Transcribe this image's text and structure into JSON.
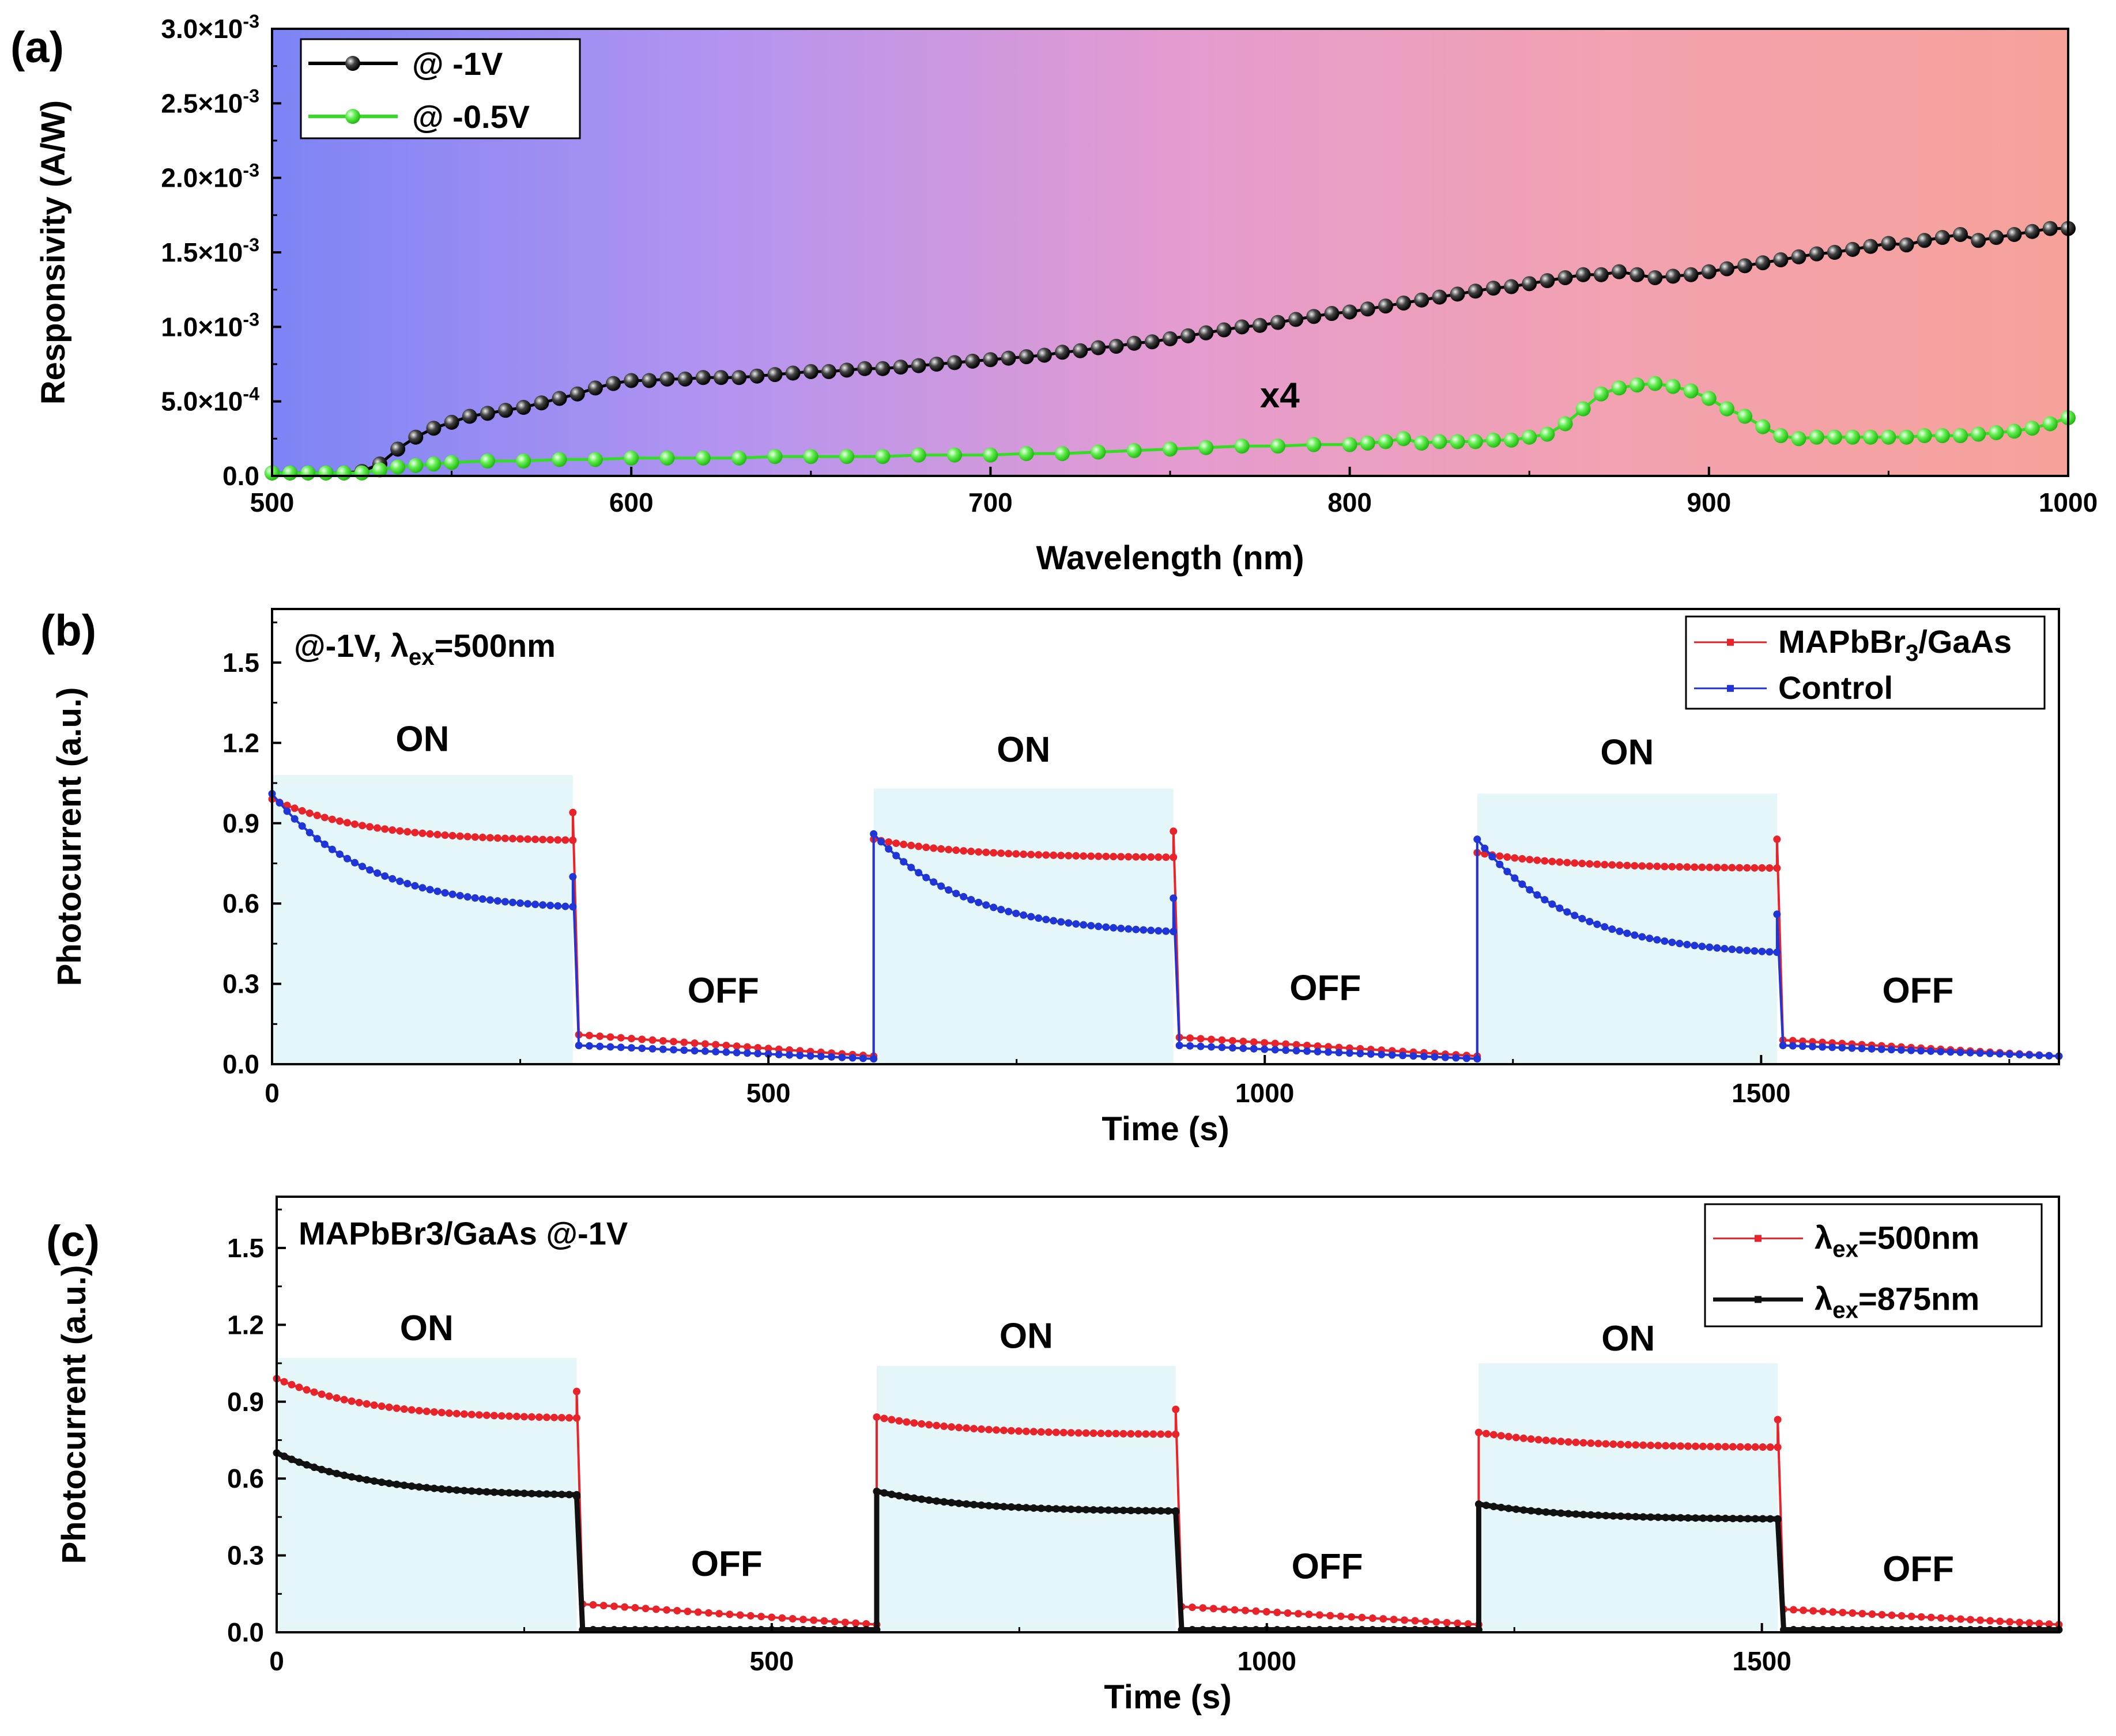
{
  "chart_data": [
    {
      "panel": "(a)",
      "type": "line",
      "xlabel": "Wavelength (nm)",
      "ylabel": "Responsivity (A/W)",
      "xlim": [
        500,
        1000
      ],
      "ylim": [
        0,
        0.003
      ],
      "xticks": [
        500,
        600,
        700,
        800,
        900,
        1000
      ],
      "xtick_labels": [
        "500",
        "600",
        "700",
        "800",
        "900",
        "1000"
      ],
      "yticks": [
        0,
        0.0005,
        0.001,
        0.0015,
        0.002,
        0.0025,
        0.003
      ],
      "ytick_labels": [
        {
          "base": "0.0",
          "exp": ""
        },
        {
          "base": "5.0×10",
          "exp": "-4"
        },
        {
          "base": "1.0×10",
          "exp": "-3"
        },
        {
          "base": "1.5×10",
          "exp": "-3"
        },
        {
          "base": "2.0×10",
          "exp": "-3"
        },
        {
          "base": "2.5×10",
          "exp": "-3"
        },
        {
          "base": "3.0×10",
          "exp": "-3"
        }
      ],
      "background_gradient": [
        "#7d84f5",
        "#b394f0",
        "#e49bd0",
        "#f2a2b0",
        "#f6a29a"
      ],
      "annotation": {
        "text": "x4",
        "x": 775,
        "y": 0.00046,
        "color": "#33dd22"
      },
      "legend_position": "top-left",
      "series": [
        {
          "name": "@ -1V",
          "color": "#000000",
          "marker": "sphere-dark",
          "x": [
            500,
            505,
            510,
            515,
            520,
            525,
            530,
            535,
            540,
            545,
            550,
            555,
            560,
            565,
            570,
            575,
            580,
            585,
            590,
            595,
            600,
            605,
            610,
            615,
            620,
            625,
            630,
            635,
            640,
            645,
            650,
            655,
            660,
            665,
            670,
            675,
            680,
            685,
            690,
            695,
            700,
            705,
            710,
            715,
            720,
            725,
            730,
            735,
            740,
            745,
            750,
            755,
            760,
            765,
            770,
            775,
            780,
            785,
            790,
            795,
            800,
            805,
            810,
            815,
            820,
            825,
            830,
            835,
            840,
            845,
            850,
            855,
            860,
            865,
            870,
            875,
            880,
            885,
            890,
            895,
            900,
            905,
            910,
            915,
            920,
            925,
            930,
            935,
            940,
            945,
            950,
            955,
            960,
            965,
            970,
            975,
            980,
            985,
            990,
            995,
            1000
          ],
          "y": [
            2e-05,
            2e-05,
            2e-05,
            2e-05,
            2e-05,
            3e-05,
            8e-05,
            0.00018,
            0.00026,
            0.00032,
            0.00036,
            0.0004,
            0.00042,
            0.00044,
            0.00046,
            0.00049,
            0.00052,
            0.00055,
            0.00059,
            0.00062,
            0.00064,
            0.00064,
            0.00065,
            0.00065,
            0.00066,
            0.00066,
            0.00066,
            0.00067,
            0.00068,
            0.00069,
            0.0007,
            0.0007,
            0.00071,
            0.00072,
            0.00072,
            0.00073,
            0.00074,
            0.00075,
            0.00076,
            0.00077,
            0.00078,
            0.00079,
            0.0008,
            0.00081,
            0.00083,
            0.00084,
            0.00086,
            0.00087,
            0.00089,
            0.0009,
            0.00092,
            0.00094,
            0.00096,
            0.00098,
            0.001,
            0.00101,
            0.00103,
            0.00105,
            0.00107,
            0.00109,
            0.0011,
            0.00112,
            0.00114,
            0.00116,
            0.00118,
            0.0012,
            0.00122,
            0.00124,
            0.00126,
            0.00127,
            0.00129,
            0.00131,
            0.00133,
            0.00135,
            0.00135,
            0.00137,
            0.00135,
            0.00133,
            0.00134,
            0.00135,
            0.00137,
            0.00139,
            0.00141,
            0.00143,
            0.00145,
            0.00147,
            0.00149,
            0.0015,
            0.00152,
            0.00154,
            0.00156,
            0.00155,
            0.00158,
            0.0016,
            0.00162,
            0.00158,
            0.0016,
            0.00162,
            0.00164,
            0.00166,
            0.00166
          ]
        },
        {
          "name": "@ -0.5V",
          "color": "#33dd22",
          "marker": "sphere-light",
          "x": [
            500,
            505,
            510,
            515,
            520,
            525,
            530,
            535,
            540,
            545,
            550,
            560,
            570,
            580,
            590,
            600,
            610,
            620,
            630,
            640,
            650,
            660,
            670,
            680,
            690,
            700,
            710,
            720,
            730,
            740,
            750,
            760,
            770,
            780,
            790,
            800,
            805,
            810,
            815,
            820,
            825,
            830,
            835,
            840,
            845,
            850,
            855,
            860,
            865,
            870,
            875,
            880,
            885,
            890,
            895,
            900,
            905,
            910,
            915,
            920,
            925,
            930,
            935,
            940,
            945,
            950,
            955,
            960,
            965,
            970,
            975,
            980,
            985,
            990,
            995,
            1000
          ],
          "y": [
            2e-05,
            2e-05,
            2e-05,
            2e-05,
            2e-05,
            2e-05,
            4e-05,
            6e-05,
            7e-05,
            8e-05,
            9e-05,
            0.0001,
            0.0001,
            0.00011,
            0.00011,
            0.00012,
            0.00012,
            0.00012,
            0.00012,
            0.00013,
            0.00013,
            0.00013,
            0.00013,
            0.00014,
            0.00014,
            0.00014,
            0.00015,
            0.00015,
            0.00016,
            0.00017,
            0.00018,
            0.00019,
            0.0002,
            0.0002,
            0.00021,
            0.00021,
            0.00022,
            0.00023,
            0.00025,
            0.00022,
            0.00023,
            0.00023,
            0.00023,
            0.00024,
            0.00024,
            0.00026,
            0.00028,
            0.00035,
            0.00045,
            0.00055,
            0.00059,
            0.00061,
            0.00062,
            0.0006,
            0.00057,
            0.00052,
            0.00045,
            0.0004,
            0.00033,
            0.00027,
            0.00025,
            0.00026,
            0.00026,
            0.00026,
            0.00026,
            0.00026,
            0.00026,
            0.00027,
            0.00027,
            0.00027,
            0.00028,
            0.00029,
            0.0003,
            0.00032,
            0.00035,
            0.00039
          ]
        }
      ]
    },
    {
      "panel": "(b)",
      "type": "line",
      "xlabel": "Time (s)",
      "ylabel": "Photocurrent (a.u.)",
      "xlim": [
        0,
        1800
      ],
      "ylim": [
        0,
        1.7
      ],
      "xticks": [
        0,
        500,
        1000,
        1500
      ],
      "xtick_labels": [
        "0",
        "500",
        "1000",
        "1500"
      ],
      "yticks": [
        0,
        0.3,
        0.6,
        0.9,
        1.2,
        1.5
      ],
      "ytick_labels": [
        "0.0",
        "0.3",
        "0.6",
        "0.9",
        "1.2",
        "1.5"
      ],
      "condition_text": {
        "pre": "@-1V, λ",
        "sub": "ex",
        "post": "=500nm"
      },
      "on_periods": [
        [
          0,
          303
        ],
        [
          606,
          908
        ],
        [
          1214,
          1516
        ]
      ],
      "on_color": "#e4f6f7",
      "on_boxes_top": [
        1.08,
        1.03,
        1.01
      ],
      "on_label": "ON",
      "on_label_color": "#b9e3f6",
      "on_label_y": [
        1.17,
        1.13,
        1.12
      ],
      "off_label": "OFF",
      "off_label_color": "#e8378f",
      "off_label_y": [
        0.23,
        0.24,
        0.23
      ],
      "legend_position": "top-right",
      "series": [
        {
          "name": "MAPbBr3/GaAs",
          "name_pre": "MAPbBr",
          "name_sub": "3",
          "name_post": "/GaAs",
          "color": "#e8232a",
          "on_start": [
            0.99,
            0.84,
            0.79
          ],
          "on_end": [
            0.83,
            0.77,
            0.73
          ],
          "spike_end": [
            0.94,
            0.87,
            0.84
          ],
          "off_start": [
            0.11,
            0.1,
            0.09
          ],
          "off_end": [
            0.03,
            0.03,
            0.03
          ]
        },
        {
          "name": "Control",
          "name_pre": "Control",
          "name_sub": "",
          "name_post": "",
          "color": "#1f35d8",
          "on_start": [
            1.01,
            0.86,
            0.84
          ],
          "on_end": [
            0.57,
            0.48,
            0.4
          ],
          "spike_end": [
            0.7,
            0.62,
            0.56
          ],
          "off_start": [
            0.07,
            0.07,
            0.07
          ],
          "off_end": [
            0.02,
            0.02,
            0.03
          ]
        }
      ]
    },
    {
      "panel": "(c)",
      "type": "line",
      "xlabel": "Time (s)",
      "ylabel": "Photocurrent (a.u.)",
      "xlim": [
        0,
        1800
      ],
      "ylim": [
        0,
        1.7
      ],
      "xticks": [
        0,
        500,
        1000,
        1500
      ],
      "xtick_labels": [
        "0",
        "500",
        "1000",
        "1500"
      ],
      "yticks": [
        0,
        0.3,
        0.6,
        0.9,
        1.2,
        1.5
      ],
      "ytick_labels": [
        "0.0",
        "0.3",
        "0.6",
        "0.9",
        "1.2",
        "1.5"
      ],
      "condition_text": {
        "pre": "MAPbBr3/GaAs @-1V",
        "sub": "",
        "post": ""
      },
      "on_periods": [
        [
          0,
          303
        ],
        [
          606,
          908
        ],
        [
          1214,
          1516
        ]
      ],
      "on_color": "#e4f6f7",
      "on_boxes_top": [
        1.07,
        1.04,
        1.05
      ],
      "on_label": "ON",
      "on_label_color": "#b9e3f6",
      "on_label_y": [
        1.14,
        1.11,
        1.1
      ],
      "off_label": "OFF",
      "off_label_color": "#e8378f",
      "off_label_y": [
        0.22,
        0.21,
        0.2
      ],
      "legend_position": "top-right",
      "series": [
        {
          "name": "λex=500nm",
          "name_pre": "λ",
          "name_sub": "ex",
          "name_post": "=500nm",
          "color": "#e8232a",
          "on_start": [
            0.99,
            0.84,
            0.78
          ],
          "on_end": [
            0.83,
            0.77,
            0.72
          ],
          "spike_end": [
            0.94,
            0.87,
            0.83
          ],
          "off_start": [
            0.11,
            0.1,
            0.09
          ],
          "off_end": [
            0.03,
            0.03,
            0.03
          ]
        },
        {
          "name": "λex=875nm",
          "name_pre": "λ",
          "name_sub": "ex",
          "name_post": "=875nm",
          "color": "#111111",
          "on_start": [
            0.7,
            0.55,
            0.5
          ],
          "on_end": [
            0.53,
            0.47,
            0.44
          ],
          "spike_end": [
            0.53,
            0.47,
            0.44
          ],
          "off_start": [
            0.01,
            0.01,
            0.01
          ],
          "off_end": [
            0.01,
            0.01,
            0.01
          ]
        }
      ]
    }
  ]
}
